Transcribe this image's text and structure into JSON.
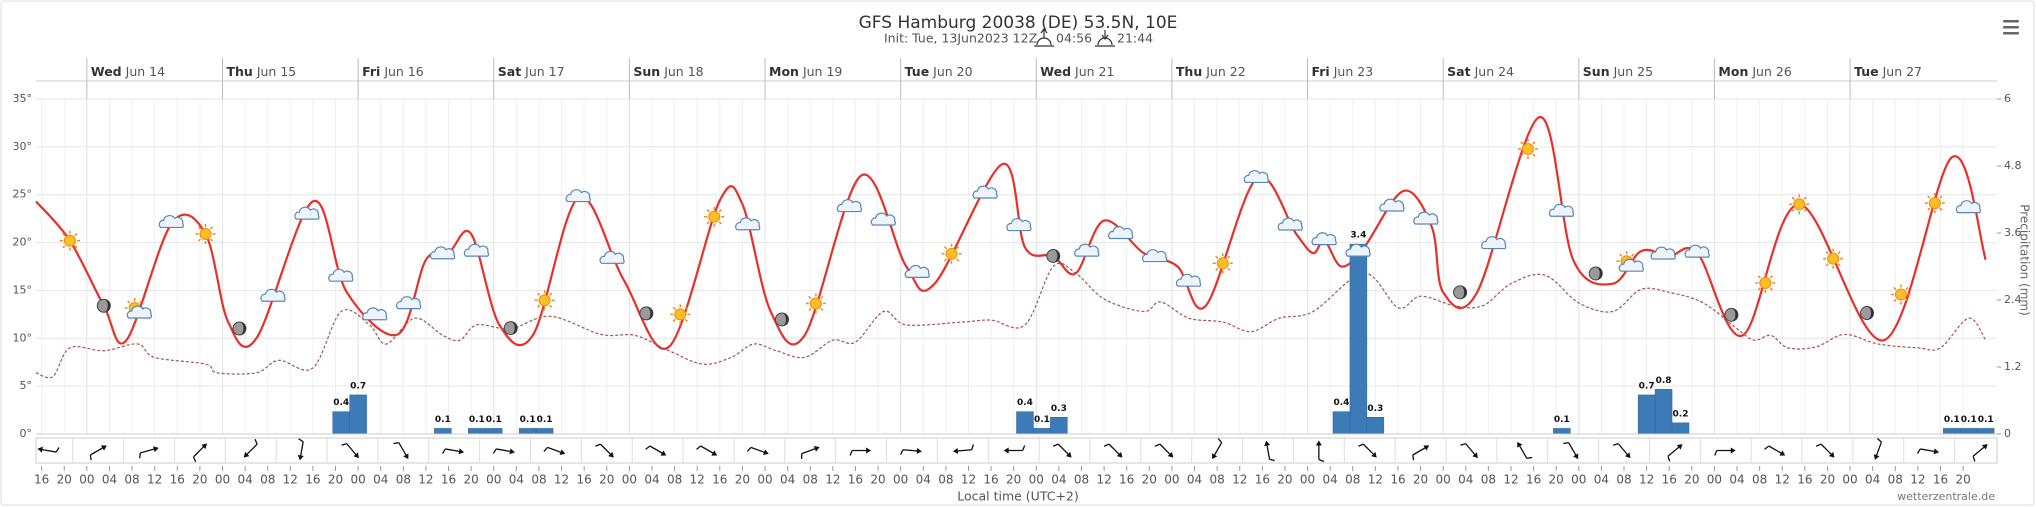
{
  "chart_data": {
    "type": "meteogram",
    "title": "GFS Hamburg 20038 (DE) 53.5N, 10E",
    "subtitle": "Init: Tue, 13Jun2023 12Z",
    "sunrise": "04:56",
    "sunset": "21:44",
    "x_label": "Local time (UTC+2)",
    "y2_label": "Precipitation (mm)",
    "credit": "wetterzentrale.de",
    "grid": true,
    "xlim": [
      -9,
      338
    ],
    "ylim": [
      0,
      35
    ],
    "y2lim": [
      0,
      6
    ],
    "yticks": [
      {
        "value": 0,
        "label": "0°"
      },
      {
        "value": 5,
        "label": "5°"
      },
      {
        "value": 10,
        "label": "10°"
      },
      {
        "value": 15,
        "label": "15°"
      },
      {
        "value": 20,
        "label": "20°"
      },
      {
        "value": 25,
        "label": "25°"
      },
      {
        "value": 30,
        "label": "30°"
      },
      {
        "value": 35,
        "label": "35°"
      }
    ],
    "y2ticks": [
      0,
      1.2,
      2.4,
      3.6,
      4.8,
      6
    ],
    "xticks": [
      {
        "value": -8,
        "label": "16"
      },
      {
        "value": -4,
        "label": "20"
      },
      {
        "value": 0,
        "label": "00"
      },
      {
        "value": 4,
        "label": "04"
      },
      {
        "value": 8,
        "label": "08"
      },
      {
        "value": 12,
        "label": "12"
      },
      {
        "value": 16,
        "label": "16"
      },
      {
        "value": 20,
        "label": "20"
      },
      {
        "value": 24,
        "label": "00"
      },
      {
        "value": 28,
        "label": "04"
      },
      {
        "value": 32,
        "label": "08"
      },
      {
        "value": 36,
        "label": "12"
      },
      {
        "value": 40,
        "label": "16"
      },
      {
        "value": 44,
        "label": "20"
      },
      {
        "value": 48,
        "label": "00"
      },
      {
        "value": 52,
        "label": "04"
      },
      {
        "value": 56,
        "label": "08"
      },
      {
        "value": 60,
        "label": "12"
      },
      {
        "value": 64,
        "label": "16"
      },
      {
        "value": 68,
        "label": "20"
      },
      {
        "value": 72,
        "label": "00"
      },
      {
        "value": 76,
        "label": "04"
      },
      {
        "value": 80,
        "label": "08"
      },
      {
        "value": 84,
        "label": "12"
      },
      {
        "value": 88,
        "label": "16"
      },
      {
        "value": 92,
        "label": "20"
      },
      {
        "value": 96,
        "label": "00"
      },
      {
        "value": 100,
        "label": "04"
      },
      {
        "value": 104,
        "label": "08"
      },
      {
        "value": 108,
        "label": "12"
      },
      {
        "value": 112,
        "label": "16"
      },
      {
        "value": 116,
        "label": "20"
      },
      {
        "value": 120,
        "label": "00"
      },
      {
        "value": 124,
        "label": "04"
      },
      {
        "value": 128,
        "label": "08"
      },
      {
        "value": 132,
        "label": "12"
      },
      {
        "value": 136,
        "label": "16"
      },
      {
        "value": 140,
        "label": "20"
      },
      {
        "value": 144,
        "label": "00"
      },
      {
        "value": 148,
        "label": "04"
      },
      {
        "value": 152,
        "label": "08"
      },
      {
        "value": 156,
        "label": "12"
      },
      {
        "value": 160,
        "label": "16"
      },
      {
        "value": 164,
        "label": "20"
      },
      {
        "value": 168,
        "label": "00"
      },
      {
        "value": 172,
        "label": "04"
      },
      {
        "value": 176,
        "label": "08"
      },
      {
        "value": 180,
        "label": "12"
      },
      {
        "value": 184,
        "label": "16"
      },
      {
        "value": 188,
        "label": "20"
      },
      {
        "value": 192,
        "label": "00"
      },
      {
        "value": 196,
        "label": "04"
      },
      {
        "value": 200,
        "label": "08"
      },
      {
        "value": 204,
        "label": "12"
      },
      {
        "value": 208,
        "label": "16"
      },
      {
        "value": 212,
        "label": "20"
      },
      {
        "value": 216,
        "label": "00"
      },
      {
        "value": 220,
        "label": "04"
      },
      {
        "value": 224,
        "label": "08"
      },
      {
        "value": 228,
        "label": "12"
      },
      {
        "value": 232,
        "label": "16"
      },
      {
        "value": 236,
        "label": "20"
      },
      {
        "value": 240,
        "label": "00"
      },
      {
        "value": 244,
        "label": "04"
      },
      {
        "value": 248,
        "label": "08"
      },
      {
        "value": 252,
        "label": "12"
      },
      {
        "value": 256,
        "label": "16"
      },
      {
        "value": 260,
        "label": "20"
      },
      {
        "value": 264,
        "label": "00"
      },
      {
        "value": 268,
        "label": "04"
      },
      {
        "value": 272,
        "label": "08"
      },
      {
        "value": 276,
        "label": "12"
      },
      {
        "value": 280,
        "label": "16"
      },
      {
        "value": 284,
        "label": "20"
      },
      {
        "value": 288,
        "label": "00"
      },
      {
        "value": 292,
        "label": "04"
      },
      {
        "value": 296,
        "label": "08"
      },
      {
        "value": 300,
        "label": "12"
      },
      {
        "value": 304,
        "label": "16"
      },
      {
        "value": 308,
        "label": "20"
      },
      {
        "value": 312,
        "label": "00"
      },
      {
        "value": 316,
        "label": "04"
      },
      {
        "value": 320,
        "label": "08"
      },
      {
        "value": 324,
        "label": "12"
      },
      {
        "value": 328,
        "label": "16"
      },
      {
        "value": 332,
        "label": "20"
      }
    ],
    "day_ticks": [
      {
        "value": 0,
        "day": "Wed",
        "date": "Jun 14"
      },
      {
        "value": 24,
        "day": "Thu",
        "date": "Jun 15"
      },
      {
        "value": 48,
        "day": "Fri",
        "date": "Jun 16"
      },
      {
        "value": 72,
        "day": "Sat",
        "date": "Jun 17"
      },
      {
        "value": 96,
        "day": "Sun",
        "date": "Jun 18"
      },
      {
        "value": 120,
        "day": "Mon",
        "date": "Jun 19"
      },
      {
        "value": 144,
        "day": "Tue",
        "date": "Jun 20"
      },
      {
        "value": 168,
        "day": "Wed",
        "date": "Jun 21"
      },
      {
        "value": 192,
        "day": "Thu",
        "date": "Jun 22"
      },
      {
        "value": 216,
        "day": "Fri",
        "date": "Jun 23"
      },
      {
        "value": 240,
        "day": "Sat",
        "date": "Jun 24"
      },
      {
        "value": 264,
        "day": "Sun",
        "date": "Jun 25"
      },
      {
        "value": 288,
        "day": "Mon",
        "date": "Jun 26"
      },
      {
        "value": 312,
        "day": "Tue",
        "date": "Jun 27"
      }
    ],
    "series": [
      {
        "type": "spline",
        "color": "#e8302a",
        "x": [
          -9,
          -3,
          3,
          7,
          15,
          21,
          25,
          30,
          40,
          46,
          55,
          60,
          64,
          68,
          73,
          79,
          87,
          95,
          103,
          112,
          116,
          121,
          127,
          137,
          145,
          150,
          162,
          166,
          171,
          175,
          180,
          187,
          193,
          198,
          207,
          214,
          217,
          219,
          222,
          226,
          233,
          238,
          240,
          246,
          257,
          263,
          270,
          275,
          280,
          285,
          293,
          303,
          318,
          330,
          336
        ],
        "values": [
          24.3,
          20.2,
          13.4,
          9.8,
          22,
          20.9,
          11.7,
          10,
          24.3,
          14.8,
          10.4,
          18.2,
          18.9,
          20.9,
          11.4,
          10.4,
          24.7,
          16.1,
          9.1,
          24.4,
          24,
          12.8,
          10.3,
          27,
          17.5,
          15.7,
          28.2,
          19.5,
          18.6,
          16.8,
          22.3,
          18.9,
          17.5,
          13.4,
          26.7,
          20.9,
          18.9,
          20.2,
          17.5,
          19.5,
          25.4,
          21.6,
          14.8,
          14.8,
          33.1,
          18.2,
          15.7,
          19.1,
          18.6,
          18.9,
          10.3,
          24,
          9.8,
          28.9,
          18.2
        ]
      },
      {
        "type": "dashed",
        "color": "#a65550",
        "x": [
          -9,
          -6,
          -3,
          3,
          9,
          12,
          21,
          23,
          30,
          34,
          40,
          45,
          50,
          53,
          58,
          63,
          66,
          69,
          75,
          82,
          91,
          97,
          103,
          109,
          114,
          118,
          122,
          127,
          132,
          136,
          141,
          145,
          155,
          160,
          166,
          171,
          175,
          180,
          187,
          190,
          195,
          201,
          206,
          211,
          217,
          226,
          232,
          236,
          242,
          247,
          252,
          258,
          264,
          270,
          275,
          280,
          286,
          292,
          295,
          298,
          301,
          306,
          311,
          317,
          324,
          328,
          333,
          336
        ],
        "values": [
          6.4,
          6,
          9,
          8.7,
          9.4,
          8,
          7.3,
          6.4,
          6.4,
          7.7,
          6.9,
          12.8,
          11.4,
          9.4,
          12.1,
          10.3,
          9.8,
          11.4,
          11,
          12.3,
          10.4,
          10.3,
          8.7,
          7.3,
          8,
          9.4,
          8.7,
          8,
          9.8,
          9.6,
          12.8,
          11.4,
          11.7,
          11.9,
          11.4,
          17.5,
          16.8,
          14.1,
          12.8,
          13.8,
          12.1,
          11.7,
          10.7,
          12.1,
          12.8,
          16.8,
          13.2,
          14.4,
          13.4,
          13.4,
          15.7,
          16.6,
          13.7,
          12.8,
          15.1,
          14.8,
          13.7,
          11,
          9.8,
          10.3,
          9,
          9.1,
          10.4,
          9.4,
          9,
          9,
          12.1,
          9.8
        ]
      },
      {
        "type": "bar",
        "axis": "y2",
        "color": "#3d7ab8",
        "x": [
          45,
          48,
          63,
          69,
          72,
          78,
          81,
          166,
          169,
          172,
          222,
          225,
          228,
          261,
          276,
          279,
          282,
          330,
          333,
          336
        ],
        "values": [
          0.4,
          0.7,
          0.1,
          0.1,
          0.1,
          0.1,
          0.1,
          0.4,
          0.1,
          0.3,
          0.4,
          3.4,
          0.3,
          0.1,
          0.7,
          0.8,
          0.2,
          0.1,
          0.1,
          0.1
        ]
      },
      {
        "type": "wind",
        "color": "#111",
        "x": [
          -7,
          2,
          11,
          20,
          29,
          38,
          47,
          56,
          65,
          74,
          83,
          92,
          101,
          110,
          119,
          128,
          137,
          146,
          155,
          164,
          173,
          182,
          191,
          200,
          209,
          218,
          227,
          236,
          245,
          254,
          263,
          272,
          281,
          290,
          299,
          308,
          317,
          326,
          335
        ],
        "values": [
          280,
          60,
          75,
          45,
          225,
          190,
          140,
          150,
          100,
          100,
          110,
          135,
          120,
          120,
          110,
          70,
          90,
          95,
          265,
          270,
          135,
          135,
          135,
          210,
          350,
          0,
          135,
          60,
          140,
          330,
          150,
          140,
          50,
          90,
          120,
          135,
          200,
          100,
          50
        ]
      }
    ],
    "symbols": {
      "x": [
        -3,
        3,
        9,
        15,
        21,
        27,
        33,
        39,
        45,
        51,
        57,
        63,
        69,
        75,
        81,
        87,
        93,
        99,
        105,
        111,
        117,
        123,
        129,
        135,
        141,
        147,
        153,
        159,
        165,
        171,
        177,
        183,
        189,
        195,
        201,
        207,
        213,
        219,
        225,
        231,
        237,
        243,
        249,
        255,
        261,
        267,
        273,
        279,
        285,
        291,
        297,
        303,
        309,
        315,
        321,
        327,
        333
      ],
      "kinds": [
        "sun",
        "moon",
        "partly",
        "cloud",
        "sun",
        "moon",
        "cloud",
        "cloud",
        "cloud",
        "cloud",
        "cloud",
        "cloud",
        "cloud",
        "moon",
        "sun",
        "cloud",
        "cloud",
        "moon",
        "sun",
        "sun",
        "cloud",
        "moon",
        "sun",
        "cloud",
        "cloud",
        "cloud",
        "sun",
        "cloud",
        "cloud",
        "moon",
        "cloud",
        "cloud",
        "cloud",
        "cloud",
        "sun",
        "cloud",
        "cloud",
        "cloud",
        "cloud",
        "cloud",
        "cloud",
        "moon",
        "cloud",
        "sun",
        "cloud",
        "moon",
        "partly",
        "cloud",
        "cloud",
        "moon",
        "sun",
        "sun",
        "sun",
        "moon",
        "sun",
        "sun",
        "cloud"
      ]
    }
  }
}
